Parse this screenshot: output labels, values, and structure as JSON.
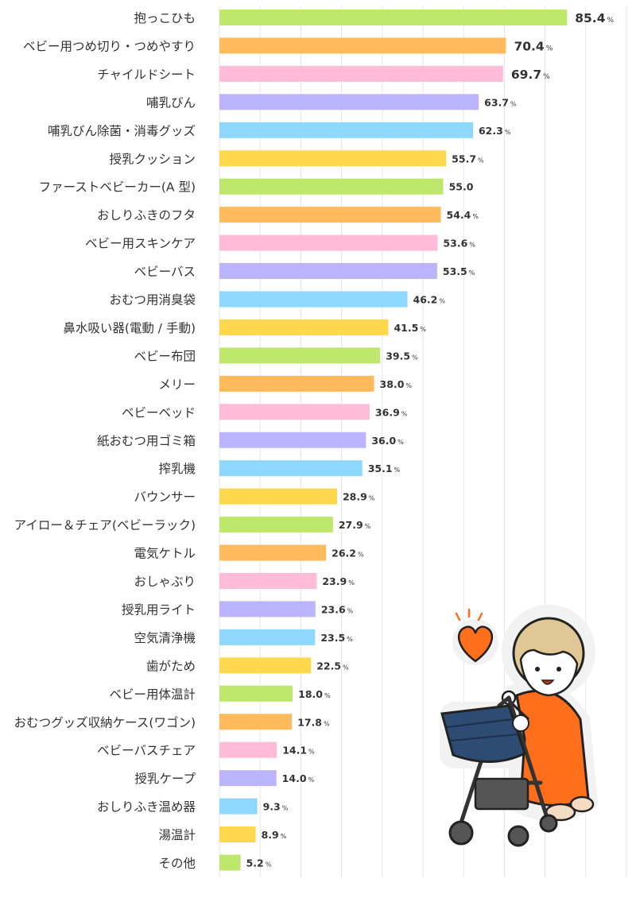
{
  "chart_data": {
    "type": "bar",
    "orientation": "horizontal",
    "value_suffix": "%",
    "xlim": [
      0,
      100
    ],
    "grid": true,
    "categories": [
      "抱っこひも",
      "ベビー用つめ切り・つめやすり",
      "チャイルドシート",
      "哺乳びん",
      "哺乳びん除菌・消毒グッズ",
      "授乳クッション",
      "ファーストベビーカー(A 型)",
      "おしりふきのフタ",
      "ベビー用スキンケア",
      "ベビーバス",
      "おむつ用消臭袋",
      "鼻水吸い器(電動 / 手動)",
      "ベビー布団",
      "メリー",
      "ベビーベッド",
      "紙おむつ用ゴミ箱",
      "搾乳機",
      "バウンサー",
      "アイロー＆チェア(ベビーラック)",
      "電気ケトル",
      "おしゃぶり",
      "授乳用ライト",
      "空気清浄機",
      "歯がため",
      "ベビー用体温計",
      "おむつグッズ収納ケース(ワゴン)",
      "ベビーバスチェア",
      "授乳ケープ",
      "おしりふき温め器",
      "湯温計",
      "その他"
    ],
    "values": [
      85.4,
      70.4,
      69.7,
      63.7,
      62.3,
      55.7,
      55.0,
      54.4,
      53.6,
      53.5,
      46.2,
      41.5,
      39.5,
      38.0,
      36.9,
      36.0,
      35.1,
      28.9,
      27.9,
      26.2,
      23.9,
      23.6,
      23.5,
      22.5,
      18.0,
      17.8,
      14.1,
      14.0,
      9.3,
      8.9,
      5.2
    ],
    "value_labels": [
      "85.4",
      "70.4",
      "69.7",
      "63.7",
      "62.3",
      "55.7",
      "55.0",
      "54.4",
      "53.6",
      "53.5",
      "46.2",
      "41.5",
      "39.5",
      "38.0",
      "36.9",
      "36.0",
      "35.1",
      "28.9",
      "27.9",
      "26.2",
      "23.9",
      "23.6",
      "23.5",
      "22.5",
      "18.0",
      "17.8",
      "14.1",
      "14.0",
      "9.3",
      "8.9",
      "5.2"
    ],
    "show_suffix": [
      true,
      true,
      true,
      true,
      true,
      true,
      false,
      true,
      true,
      true,
      true,
      true,
      true,
      true,
      true,
      true,
      true,
      true,
      true,
      true,
      true,
      true,
      true,
      true,
      true,
      true,
      true,
      true,
      true,
      true,
      true
    ],
    "bar_colors": [
      "#bde86b",
      "#ffba5c",
      "#ffbcd8",
      "#bbb5ff",
      "#8ed8ff",
      "#ffd84e"
    ],
    "colors": {
      "label": "#333333",
      "value": "#333333",
      "grid": "#e6e6e6"
    },
    "illustration": "mother-pushing-stroller-with-heart"
  }
}
